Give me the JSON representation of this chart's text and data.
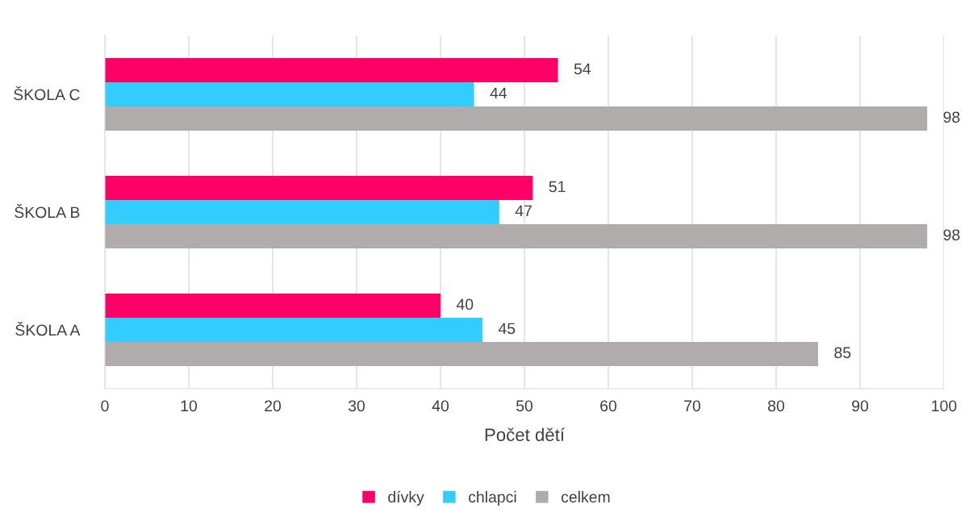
{
  "chart_data": {
    "type": "bar",
    "orientation": "horizontal",
    "xlabel": "Počet dětí",
    "categories": [
      "ŠKOLA C",
      "ŠKOLA B",
      "ŠKOLA A"
    ],
    "series": [
      {
        "name": "dívky",
        "color": "#ff0066",
        "values": [
          54,
          51,
          40
        ]
      },
      {
        "name": "chlapci",
        "color": "#33ccff",
        "values": [
          44,
          47,
          45
        ]
      },
      {
        "name": "celkem",
        "color": "#b0acac",
        "values": [
          98,
          98,
          85
        ]
      }
    ],
    "xlim": [
      0,
      100
    ],
    "xticks": [
      0,
      10,
      20,
      30,
      40,
      50,
      60,
      70,
      80,
      90,
      100
    ],
    "grid": "x",
    "legend": "bottom",
    "data_labels": true
  }
}
